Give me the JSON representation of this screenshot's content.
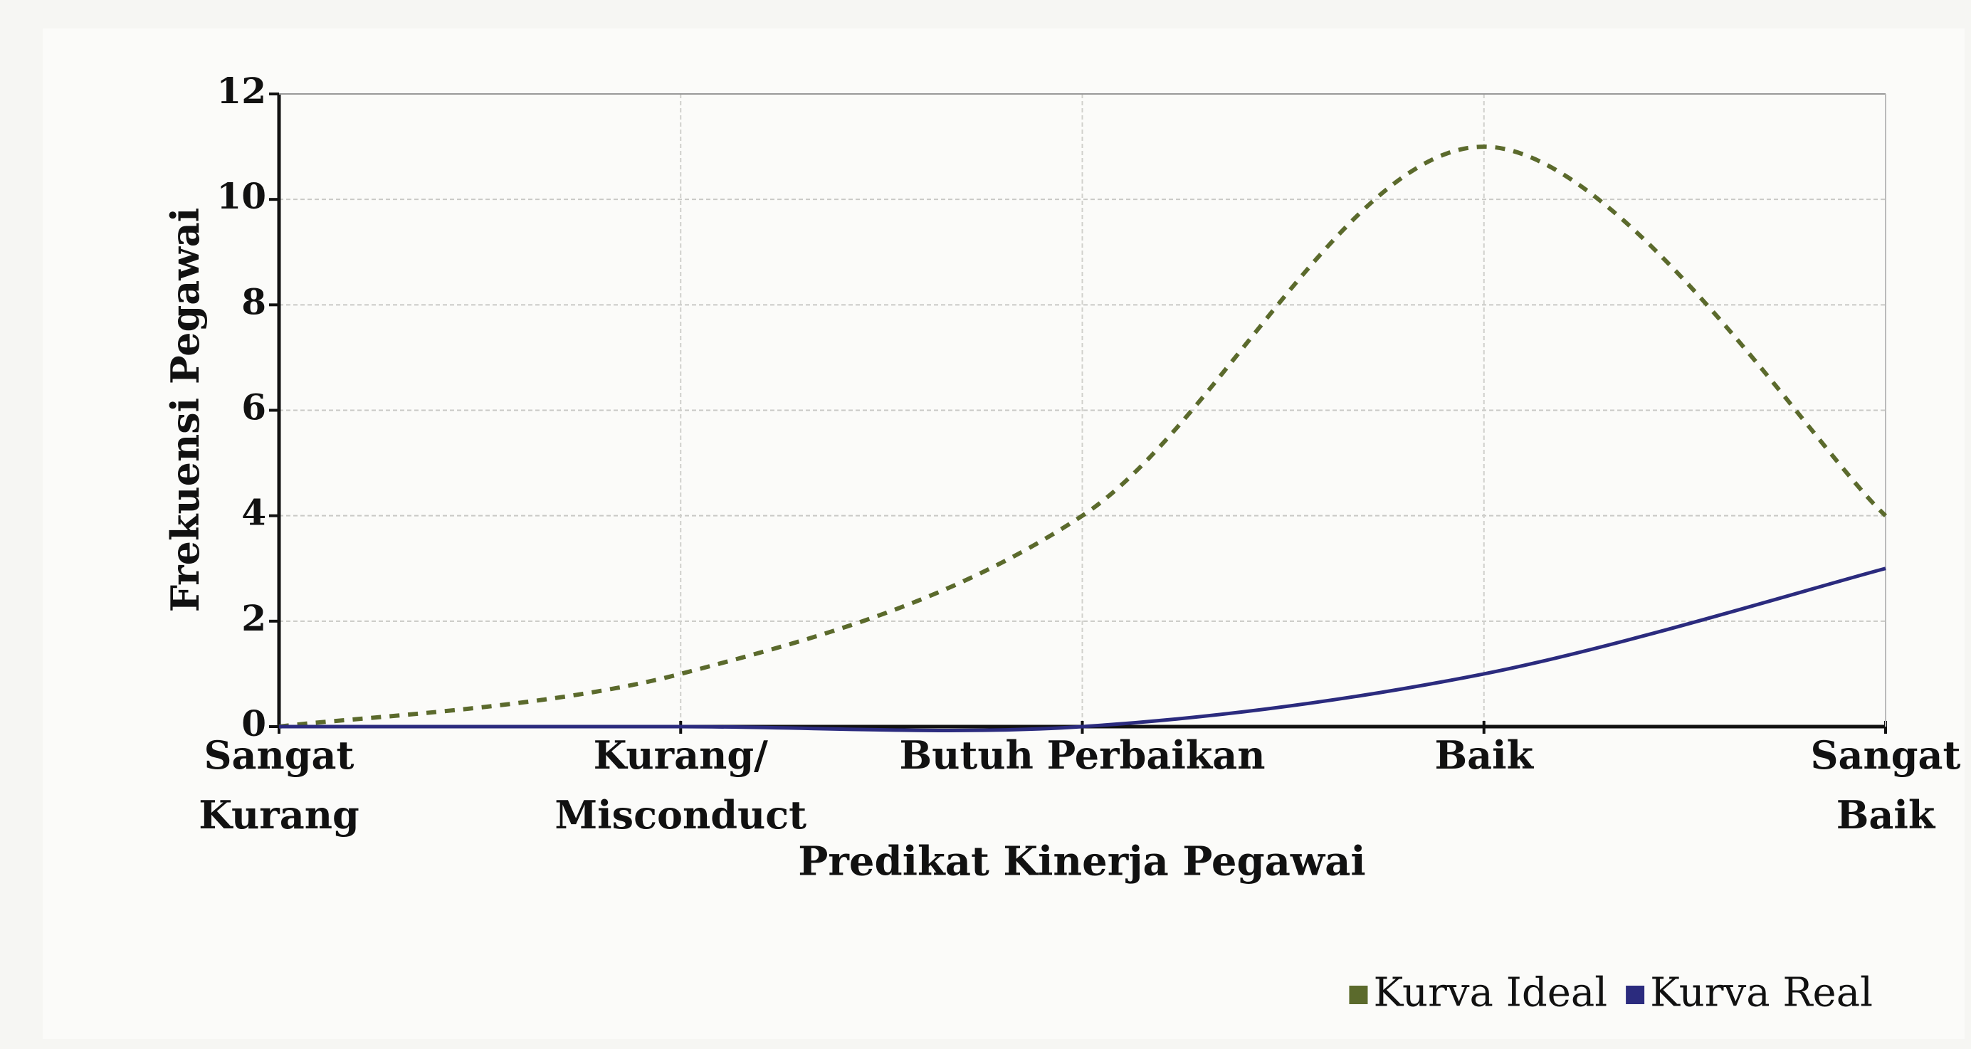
{
  "chart_data": {
    "type": "line",
    "categories": [
      "Sangat\nKurang",
      "Kurang/\nMisconduct",
      "Butuh Perbaikan",
      "Baik",
      "Sangat\nBaik"
    ],
    "series": [
      {
        "name": "Kurva Ideal",
        "color": "#5b6a2c",
        "dashed": true,
        "values": [
          0,
          1,
          4,
          11,
          4
        ]
      },
      {
        "name": "Kurva Real",
        "color": "#2b2b7e",
        "dashed": false,
        "values": [
          0,
          0,
          0,
          1,
          3
        ]
      }
    ],
    "ylim": [
      0,
      12
    ],
    "yticks": [
      0,
      2,
      4,
      6,
      8,
      10,
      12
    ],
    "grid": true,
    "xlabel": "Predikat Kinerja Pegawai",
    "ylabel": "Frekuensi Pegawai",
    "legend": "bottom-right"
  }
}
